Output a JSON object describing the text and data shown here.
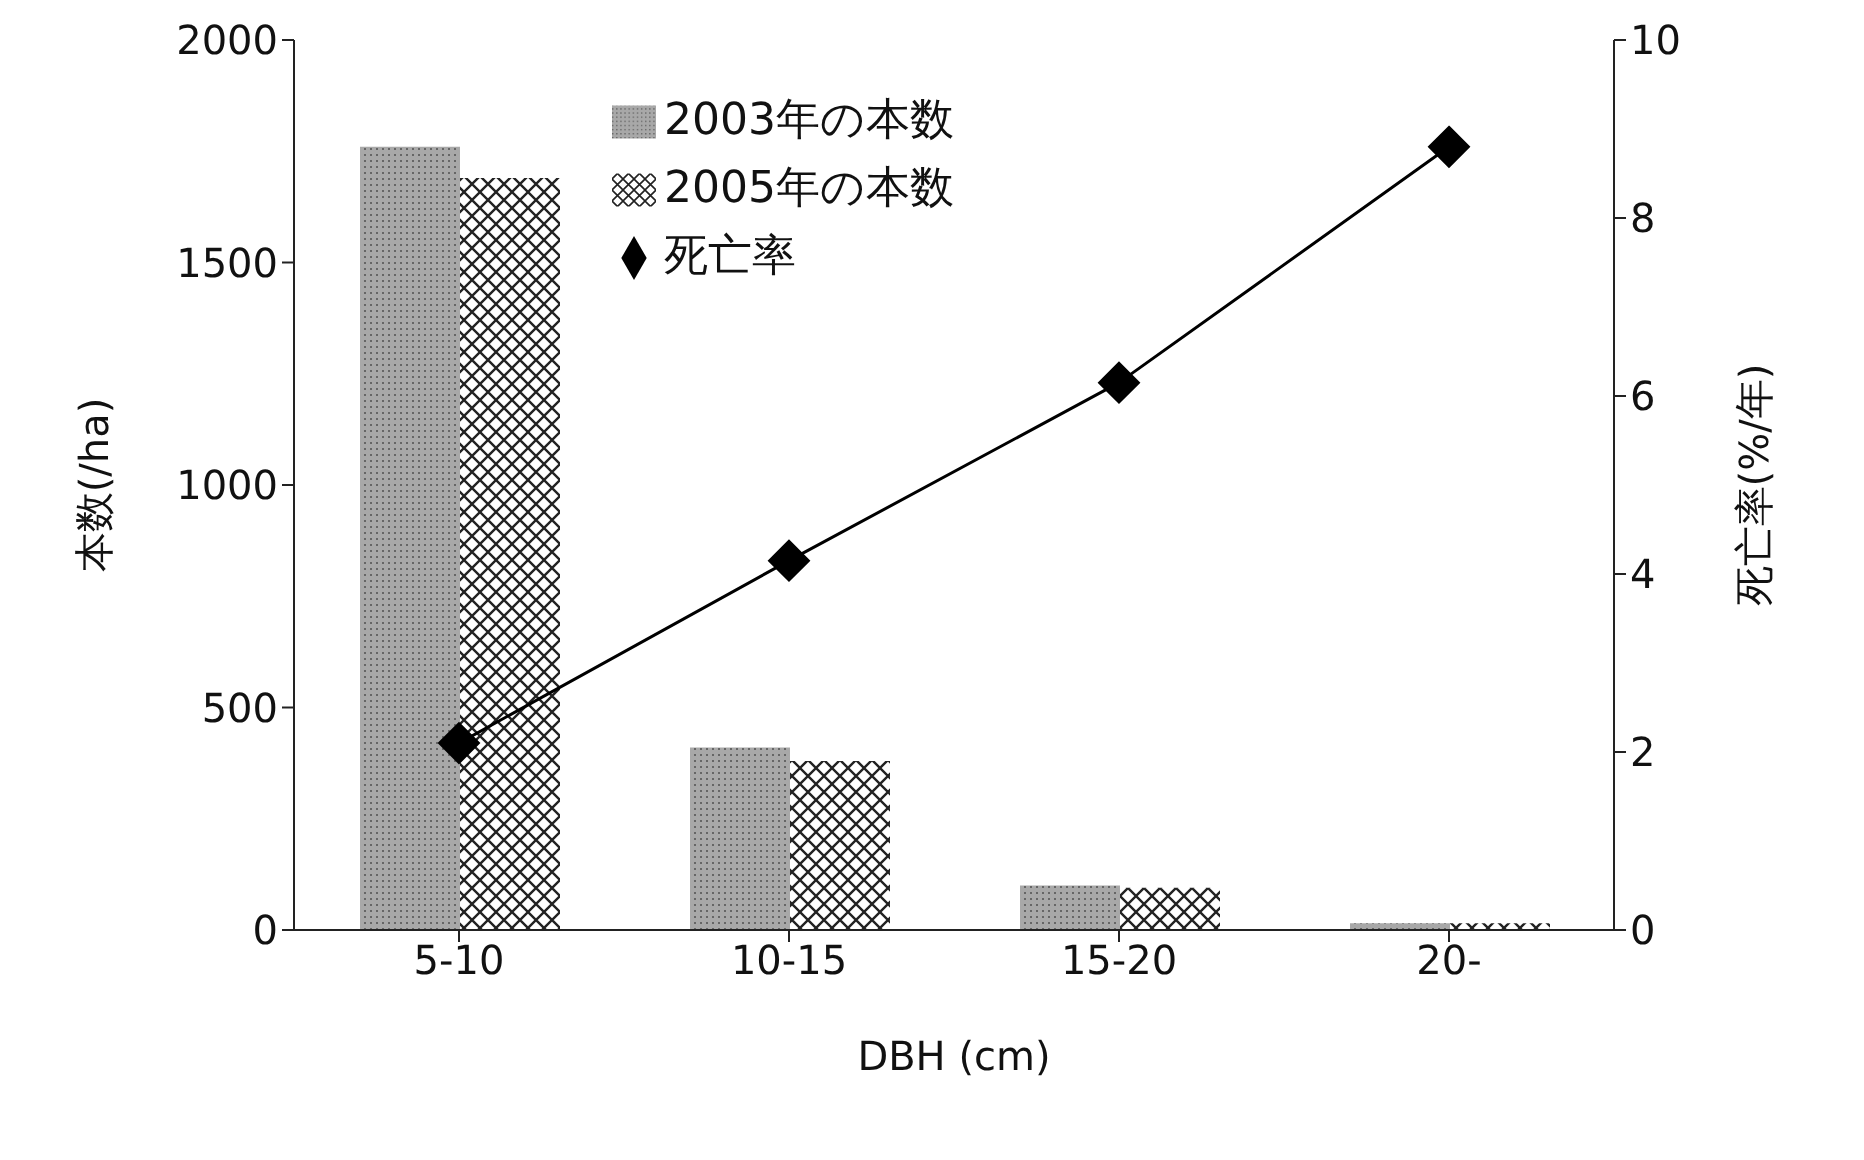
{
  "chart_data": {
    "type": "bar",
    "categories": [
      "5-10",
      "10-15",
      "15-20",
      "20-"
    ],
    "xlabel": "DBH (cm)",
    "ylabel": "本数(/ha)",
    "y2label": "死亡率(%/年)",
    "series": [
      {
        "name": "2003年の本数",
        "color": "#a8a8a8",
        "values": [
          1760,
          410,
          100,
          15
        ]
      },
      {
        "name": "2005年の本数",
        "color": "#ffffff",
        "values": [
          1690,
          380,
          95,
          15
        ]
      },
      {
        "name": "死亡率",
        "type": "line",
        "axis": "y2",
        "color": "#000000",
        "marker": "diamond",
        "values": [
          2.1,
          4.15,
          6.15,
          8.8
        ]
      }
    ],
    "ylim": [
      0,
      2000
    ],
    "yticks": [
      0,
      500,
      1000,
      1500,
      2000
    ],
    "y2lim": [
      0,
      10
    ],
    "y2ticks": [
      0,
      2,
      4,
      6,
      8,
      10
    ],
    "legend": "top left",
    "grid": false
  }
}
